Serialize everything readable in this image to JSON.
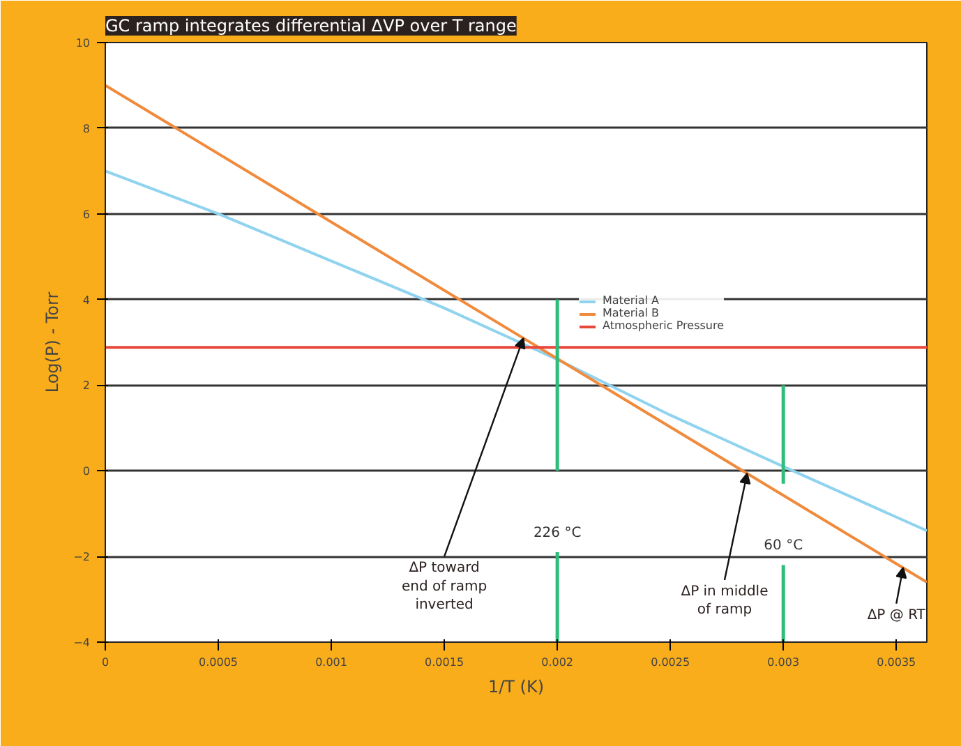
{
  "chart_data": {
    "type": "line",
    "title": "GC ramp integrates differential ΔVP over T range",
    "xlabel": "1/T (K)",
    "ylabel": "Log(P) - Torr",
    "xlim": [
      0,
      0.003635
    ],
    "ylim": [
      -4,
      10
    ],
    "xticks": [
      0,
      0.0005,
      0.001,
      0.0015,
      0.002,
      0.0025,
      0.003,
      0.0035
    ],
    "yticks": [
      -4,
      -2,
      0,
      2,
      4,
      6,
      8,
      10
    ],
    "grid": "y",
    "legend": "top right",
    "marker": "none",
    "line_style": "solid",
    "series": [
      {
        "name": "Material A",
        "color": "#8fd3ef",
        "x": [
          0,
          0.0005,
          0.001,
          0.0015,
          0.002,
          0.0025,
          0.003,
          0.003635
        ],
        "values": [
          7,
          6,
          4.9,
          3.8,
          2.6,
          1.3,
          0.1,
          -1.4
        ]
      },
      {
        "name": "Material B",
        "color": "#f08a3c",
        "x": [
          0,
          0.003635
        ],
        "values": [
          9,
          -2.6
        ]
      },
      {
        "name": "Atmospheric Pressure",
        "color": "#e8473a",
        "x": [
          0,
          0.003635
        ],
        "values": [
          2.88,
          2.88
        ]
      },
      {
        "color": "#2ebd7a",
        "x": [
          0.002,
          0.002
        ],
        "values": [
          -4,
          -1.9
        ]
      },
      {
        "color": "#2ebd7a",
        "x": [
          0.002,
          0.002
        ],
        "values": [
          0,
          4
        ]
      },
      {
        "color": "#2ebd7a",
        "x": [
          0.003,
          0.003
        ],
        "values": [
          -4,
          -2.2
        ]
      },
      {
        "color": "#2ebd7a",
        "x": [
          0.003,
          0.003
        ],
        "values": [
          -0.3,
          2
        ]
      }
    ],
    "annotations": [
      {
        "text": "226 °C",
        "x": 0.002,
        "y": -1.9
      },
      {
        "text": "60 °C",
        "x": 0.003,
        "y": -2.2
      },
      {
        "text": "ΔP toward end of ramp inverted",
        "x": 0.00185,
        "y": 3.1
      },
      {
        "text": "ΔP in middle of ramp",
        "x": 0.00284,
        "y": -0.06
      },
      {
        "text": "ΔP @ RT",
        "x": 0.00353,
        "y": -2.26
      }
    ]
  }
}
